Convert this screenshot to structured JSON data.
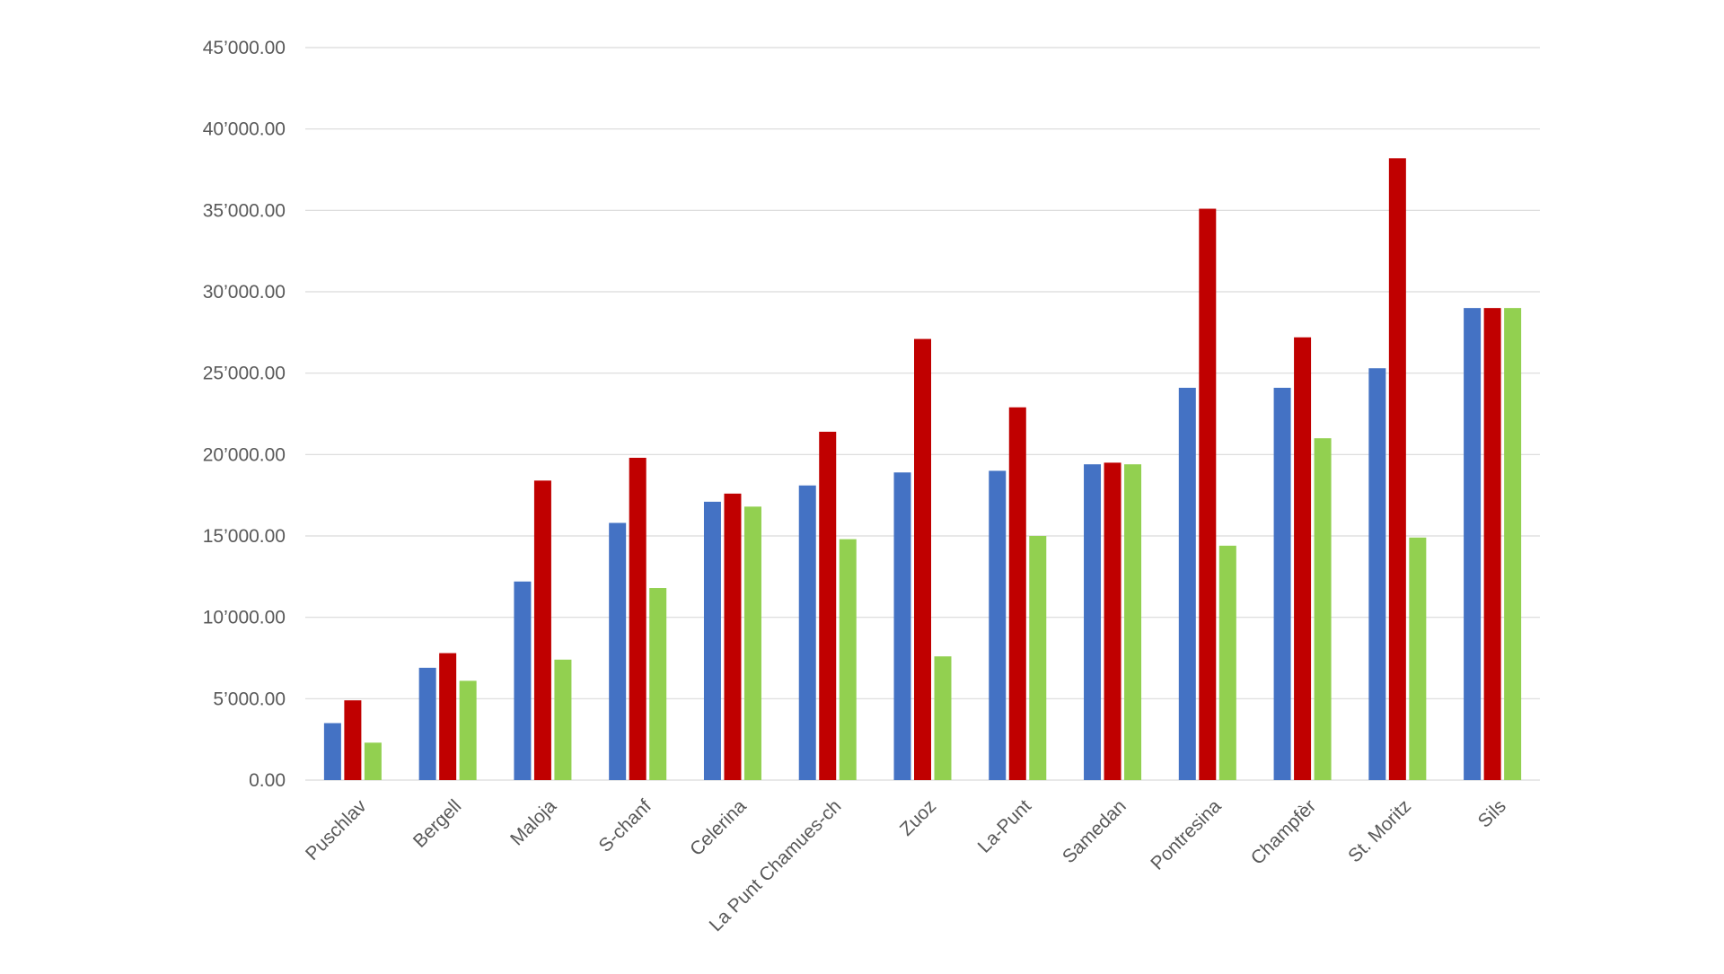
{
  "chart_data": {
    "type": "bar",
    "title": "",
    "xlabel": "",
    "ylabel": "",
    "ylim": [
      0,
      45000
    ],
    "y_ticks": [
      0,
      5000,
      10000,
      15000,
      20000,
      25000,
      30000,
      35000,
      40000,
      45000
    ],
    "y_tick_labels": [
      "0.00",
      "5’000.00",
      "10’000.00",
      "15’000.00",
      "20’000.00",
      "25’000.00",
      "30’000.00",
      "35’000.00",
      "40’000.00",
      "45’000.00"
    ],
    "grid": true,
    "legend": "none",
    "categories": [
      "Puschlav",
      "Bergell",
      "Maloja",
      "S-chanf",
      "Celerina",
      "La Punt Chamues-ch",
      "Zuoz",
      "La-Punt",
      "Samedan",
      "Pontresina",
      "Champfèr",
      "St. Moritz",
      "Sils"
    ],
    "series": [
      {
        "color": "#4472c4",
        "values": [
          3500,
          6900,
          12200,
          15800,
          17100,
          18100,
          18900,
          19000,
          19400,
          24100,
          24100,
          25300,
          29000
        ]
      },
      {
        "color": "#c00000",
        "values": [
          4900,
          7800,
          18400,
          19800,
          17600,
          21400,
          27100,
          22900,
          19500,
          35100,
          27200,
          38200,
          29000
        ]
      },
      {
        "color": "#92d050",
        "values": [
          2300,
          6100,
          7400,
          11800,
          16800,
          14800,
          7600,
          15000,
          19400,
          14400,
          21000,
          14900,
          29000
        ]
      }
    ]
  }
}
